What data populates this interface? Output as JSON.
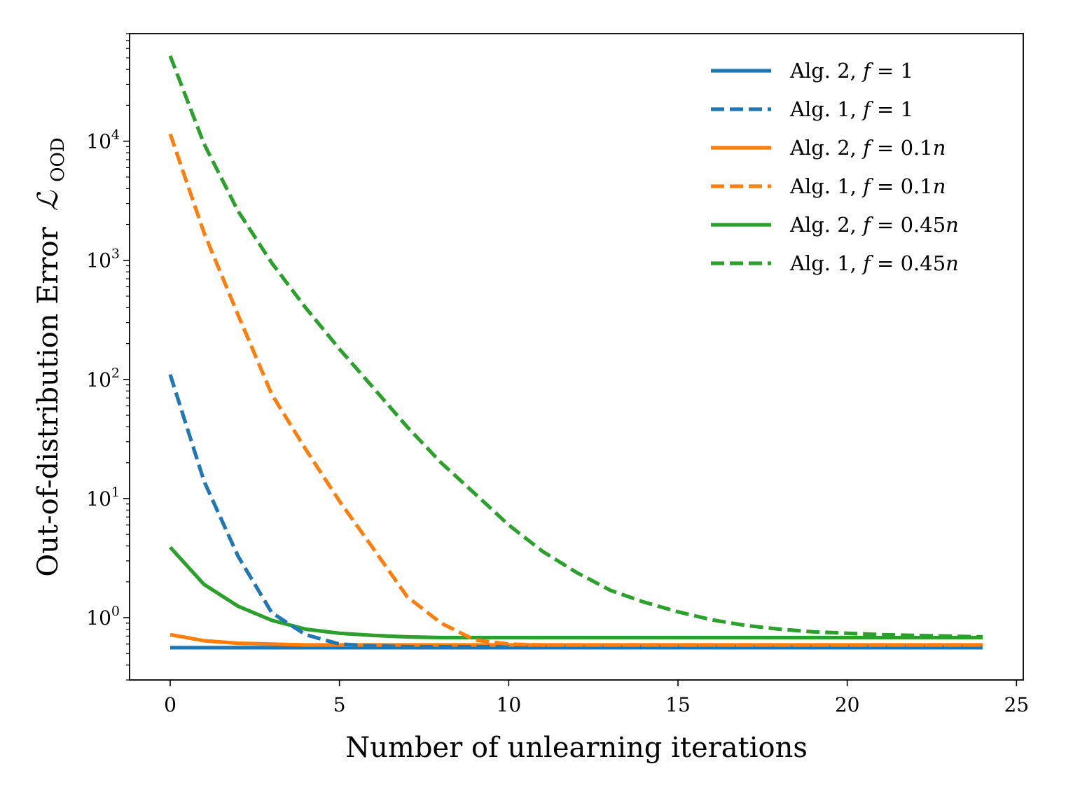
{
  "chart_data": {
    "type": "line",
    "xlabel": "Number of unlearning iterations",
    "ylabel": "Out-of-distribution Error",
    "ylabel_symbol": "ℒ",
    "ylabel_subscript": "OOD",
    "yscale": "log",
    "xlim": [
      -1.2,
      25.2
    ],
    "ylim": [
      0.3,
      80000
    ],
    "x_ticks": [
      0,
      5,
      10,
      15,
      20,
      25
    ],
    "y_ticks": [
      {
        "value": 1,
        "base": "10",
        "exp": "0"
      },
      {
        "value": 10,
        "base": "10",
        "exp": "1"
      },
      {
        "value": 100,
        "base": "10",
        "exp": "2"
      },
      {
        "value": 1000,
        "base": "10",
        "exp": "3"
      },
      {
        "value": 10000,
        "base": "10",
        "exp": "4"
      }
    ],
    "grid": false,
    "legend_position": "top-right",
    "series": [
      {
        "name": "Alg. 2, f = 1",
        "legend_prefix": "Alg. 2, ",
        "legend_var": "f",
        "legend_eq": " = 1",
        "color": "#1f77b4",
        "dash": "solid",
        "x": [
          0,
          1,
          2,
          3,
          4,
          5,
          6,
          7,
          8,
          9,
          10,
          11,
          12,
          13,
          14,
          15,
          16,
          17,
          18,
          19,
          20,
          21,
          22,
          23,
          24
        ],
        "values": [
          0.56,
          0.56,
          0.56,
          0.56,
          0.56,
          0.56,
          0.56,
          0.56,
          0.56,
          0.56,
          0.56,
          0.56,
          0.56,
          0.56,
          0.56,
          0.56,
          0.56,
          0.56,
          0.56,
          0.56,
          0.56,
          0.56,
          0.56,
          0.56,
          0.56
        ]
      },
      {
        "name": "Alg. 1, f = 1",
        "legend_prefix": "Alg. 1, ",
        "legend_var": "f",
        "legend_eq": " = 1",
        "color": "#1f77b4",
        "dash": "dashed",
        "x": [
          0,
          1,
          2,
          3,
          4,
          5,
          6,
          7,
          8,
          9,
          10,
          11,
          12,
          13,
          14,
          15,
          16,
          17,
          18,
          19,
          20,
          21,
          22,
          23,
          24
        ],
        "values": [
          110,
          14,
          3.3,
          1.1,
          0.72,
          0.6,
          0.58,
          0.57,
          0.57,
          0.57,
          0.57,
          0.57,
          0.57,
          0.57,
          0.57,
          0.57,
          0.57,
          0.57,
          0.57,
          0.57,
          0.57,
          0.57,
          0.57,
          0.57,
          0.57
        ]
      },
      {
        "name": "Alg. 2, f = 0.1n",
        "legend_prefix": "Alg. 2, ",
        "legend_var": "f",
        "legend_eq": " = 0.1",
        "legend_var2": "n",
        "color": "#ff7f0e",
        "dash": "solid",
        "x": [
          0,
          1,
          2,
          3,
          4,
          5,
          6,
          7,
          8,
          9,
          10,
          11,
          12,
          13,
          14,
          15,
          16,
          17,
          18,
          19,
          20,
          21,
          22,
          23,
          24
        ],
        "values": [
          0.72,
          0.64,
          0.61,
          0.6,
          0.59,
          0.59,
          0.59,
          0.59,
          0.59,
          0.59,
          0.59,
          0.59,
          0.59,
          0.59,
          0.59,
          0.59,
          0.59,
          0.59,
          0.59,
          0.59,
          0.59,
          0.59,
          0.59,
          0.59,
          0.59
        ]
      },
      {
        "name": "Alg. 1, f = 0.1n",
        "legend_prefix": "Alg. 1, ",
        "legend_var": "f",
        "legend_eq": " = 0.1",
        "legend_var2": "n",
        "color": "#ff7f0e",
        "dash": "dashed",
        "x": [
          0,
          1,
          2,
          3,
          4,
          5,
          6,
          7,
          8,
          9,
          10,
          11,
          12,
          13,
          14,
          15,
          16,
          17,
          18,
          19,
          20,
          21,
          22,
          23,
          24
        ],
        "values": [
          11500,
          1700,
          350,
          75,
          26,
          9.5,
          3.8,
          1.5,
          0.9,
          0.65,
          0.6,
          0.59,
          0.59,
          0.59,
          0.59,
          0.59,
          0.59,
          0.59,
          0.59,
          0.59,
          0.59,
          0.59,
          0.59,
          0.59,
          0.59
        ]
      },
      {
        "name": "Alg. 2, f = 0.45n",
        "legend_prefix": "Alg. 2, ",
        "legend_var": "f",
        "legend_eq": " = 0.45",
        "legend_var2": "n",
        "color": "#2ca02c",
        "dash": "solid",
        "x": [
          0,
          1,
          2,
          3,
          4,
          5,
          6,
          7,
          8,
          9,
          10,
          11,
          12,
          13,
          14,
          15,
          16,
          17,
          18,
          19,
          20,
          21,
          22,
          23,
          24
        ],
        "values": [
          3.9,
          1.9,
          1.25,
          0.95,
          0.8,
          0.74,
          0.71,
          0.69,
          0.68,
          0.68,
          0.68,
          0.68,
          0.68,
          0.68,
          0.68,
          0.68,
          0.68,
          0.68,
          0.68,
          0.68,
          0.68,
          0.68,
          0.68,
          0.68,
          0.68
        ]
      },
      {
        "name": "Alg. 1, f = 0.45n",
        "legend_prefix": "Alg. 1, ",
        "legend_var": "f",
        "legend_eq": " = 0.45",
        "legend_var2": "n",
        "color": "#2ca02c",
        "dash": "dashed",
        "x": [
          0,
          1,
          2,
          3,
          4,
          5,
          6,
          7,
          8,
          9,
          10,
          11,
          12,
          13,
          14,
          15,
          16,
          17,
          18,
          19,
          20,
          21,
          22,
          23,
          24
        ],
        "values": [
          52000,
          9500,
          2600,
          950,
          400,
          180,
          85,
          40,
          20,
          11,
          6,
          3.6,
          2.4,
          1.7,
          1.35,
          1.12,
          0.96,
          0.86,
          0.8,
          0.76,
          0.74,
          0.72,
          0.71,
          0.7,
          0.69
        ]
      }
    ]
  }
}
